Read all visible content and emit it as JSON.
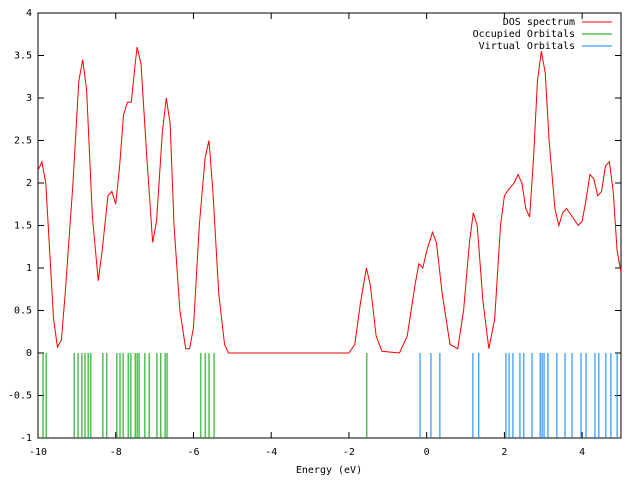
{
  "chart_data": {
    "type": "line",
    "xlabel": "Energy (eV)",
    "xlim": [
      -10,
      5
    ],
    "ylim": [
      -1,
      4
    ],
    "xticks": [
      -10,
      -8,
      -6,
      -4,
      -2,
      0,
      2,
      4
    ],
    "yticks": [
      -1,
      -0.5,
      0,
      0.5,
      1,
      1.5,
      2,
      2.5,
      3,
      3.5,
      4
    ],
    "legend": "top-right",
    "series": [
      {
        "name": "DOS spectrum",
        "color": "#ff0000",
        "x": [
          -10,
          -9.9,
          -9.8,
          -9.7,
          -9.6,
          -9.5,
          -9.4,
          -9.3,
          -9.1,
          -8.95,
          -8.85,
          -8.75,
          -8.6,
          -8.45,
          -8.35,
          -8.2,
          -8.1,
          -8.0,
          -7.9,
          -7.8,
          -7.7,
          -7.6,
          -7.5,
          -7.45,
          -7.35,
          -7.2,
          -7.05,
          -6.95,
          -6.8,
          -6.7,
          -6.6,
          -6.5,
          -6.35,
          -6.2,
          -6.1,
          -6.0,
          -5.85,
          -5.7,
          -5.6,
          -5.5,
          -5.35,
          -5.2,
          -5.1,
          -2,
          -1.85,
          -1.7,
          -1.55,
          -1.45,
          -1.3,
          -1.15,
          -0.7,
          -0.5,
          -0.3,
          -0.2,
          -0.1,
          0.0,
          0.15,
          0.25,
          0.4,
          0.6,
          0.8,
          0.95,
          1.1,
          1.2,
          1.3,
          1.45,
          1.6,
          1.75,
          1.9,
          2.0,
          2.1,
          2.25,
          2.35,
          2.45,
          2.55,
          2.65,
          2.75,
          2.85,
          2.95,
          3.05,
          3.15,
          3.3,
          3.4,
          3.5,
          3.6,
          3.75,
          3.9,
          4.0,
          4.1,
          4.2,
          4.3,
          4.4,
          4.5,
          4.6,
          4.7,
          4.8,
          4.9,
          5.0
        ],
        "values": [
          2.15,
          2.25,
          2.0,
          1.2,
          0.4,
          0.07,
          0.15,
          0.7,
          2.0,
          3.2,
          3.45,
          3.1,
          1.6,
          0.85,
          1.2,
          1.85,
          1.9,
          1.75,
          2.2,
          2.8,
          2.95,
          2.95,
          3.4,
          3.6,
          3.4,
          2.3,
          1.3,
          1.55,
          2.6,
          3.0,
          2.7,
          1.5,
          0.5,
          0.05,
          0.05,
          0.3,
          1.5,
          2.3,
          2.5,
          1.9,
          0.7,
          0.1,
          0,
          0,
          0.1,
          0.6,
          1.0,
          0.8,
          0.2,
          0.02,
          0,
          0.2,
          0.8,
          1.05,
          1.0,
          1.2,
          1.42,
          1.3,
          0.7,
          0.1,
          0.05,
          0.5,
          1.3,
          1.65,
          1.5,
          0.6,
          0.05,
          0.4,
          1.5,
          1.85,
          1.92,
          2.0,
          2.1,
          2.0,
          1.7,
          1.6,
          2.3,
          3.2,
          3.55,
          3.3,
          2.5,
          1.7,
          1.5,
          1.65,
          1.7,
          1.6,
          1.5,
          1.55,
          1.8,
          2.1,
          2.05,
          1.85,
          1.9,
          2.2,
          2.25,
          1.9,
          1.2,
          0.95
        ]
      },
      {
        "name": "Occupied Orbitals",
        "color": "#00a000",
        "type": "impulse",
        "x": [
          -9.87,
          -9.79,
          -9.07,
          -8.97,
          -8.87,
          -8.79,
          -8.71,
          -8.64,
          -8.33,
          -8.23,
          -7.97,
          -7.89,
          -7.81,
          -7.68,
          -7.61,
          -7.5,
          -7.45,
          -7.4,
          -7.25,
          -7.14,
          -6.94,
          -6.84,
          -6.73,
          -6.68,
          -5.81,
          -5.7,
          -5.6,
          -5.47,
          -1.54
        ]
      },
      {
        "name": "Virtual Orbitals",
        "color": "#0080ff",
        "type": "impulse",
        "x": [
          -0.17,
          0.11,
          0.34,
          1.19,
          1.34,
          2.04,
          2.12,
          2.22,
          2.4,
          2.5,
          2.71,
          2.92,
          2.97,
          3.02,
          3.12,
          3.35,
          3.56,
          3.74,
          3.97,
          4.1,
          4.33,
          4.43,
          4.61,
          4.74,
          4.9
        ]
      }
    ]
  }
}
